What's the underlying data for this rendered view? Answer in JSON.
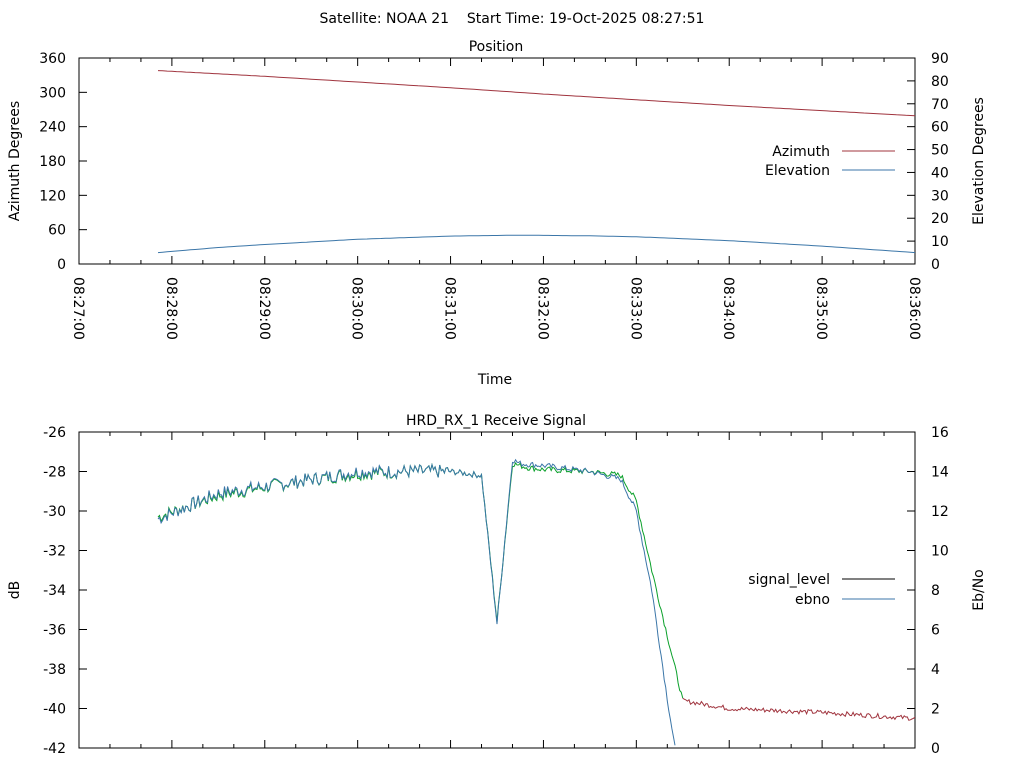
{
  "header": {
    "text": "Satellite: NOAA 21    Start Time: 19-Oct-2025 08:27:51"
  },
  "chart_data": [
    {
      "type": "line",
      "title": "Position",
      "xlabel": "Time",
      "ylabel": "Azimuth Degrees",
      "y2label": "Elevation Degrees",
      "xlim": [
        "08:27:00",
        "08:36:00"
      ],
      "ylim": [
        0,
        360
      ],
      "y2lim": [
        0,
        90
      ],
      "x_ticks": [
        "08:27:00",
        "08:28:00",
        "08:29:00",
        "08:30:00",
        "08:31:00",
        "08:32:00",
        "08:33:00",
        "08:34:00",
        "08:35:00",
        "08:36:00"
      ],
      "y_ticks": [
        "0",
        "60",
        "120",
        "180",
        "240",
        "300",
        "360"
      ],
      "y2_ticks": [
        "0",
        "10",
        "20",
        "30",
        "40",
        "50",
        "60",
        "70",
        "80",
        "90"
      ],
      "legend_position": "right",
      "series": [
        {
          "name": "Azimuth",
          "axis": "y",
          "color": "#a0343e",
          "x": [
            "08:27:51",
            "08:29:00",
            "08:30:00",
            "08:31:00",
            "08:32:00",
            "08:33:00",
            "08:34:00",
            "08:35:00",
            "08:36:00"
          ],
          "values": [
            338,
            328,
            318,
            308,
            297,
            287,
            277,
            268,
            259
          ]
        },
        {
          "name": "Elevation",
          "axis": "y2",
          "color": "#3b76a8",
          "x": [
            "08:27:51",
            "08:28:30",
            "08:29:00",
            "08:30:00",
            "08:31:00",
            "08:31:45",
            "08:32:30",
            "08:33:00",
            "08:34:00",
            "08:35:00",
            "08:36:00"
          ],
          "values": [
            5,
            7.2,
            8.5,
            10.8,
            12.2,
            12.6,
            12.3,
            11.9,
            10.2,
            7.8,
            5
          ]
        }
      ]
    },
    {
      "type": "line",
      "title": "HRD_RX_1 Receive Signal",
      "xlabel": "",
      "ylabel": "dB",
      "y2label": "Eb/No",
      "xlim": [
        "08:27:00",
        "08:36:00"
      ],
      "ylim": [
        -42,
        -26
      ],
      "y2lim": [
        0,
        16
      ],
      "y_ticks": [
        "-42",
        "-40",
        "-38",
        "-36",
        "-34",
        "-32",
        "-30",
        "-28",
        "-26"
      ],
      "y2_ticks": [
        "0",
        "2",
        "4",
        "6",
        "8",
        "10",
        "12",
        "14",
        "16"
      ],
      "legend_position": "right",
      "series": [
        {
          "name": "signal_level",
          "axis": "y",
          "color": "#000000",
          "x": [
            "08:27:51",
            "08:28:30",
            "08:29:30",
            "08:30:00",
            "08:30:30",
            "08:31:00",
            "08:31:20",
            "08:31:30",
            "08:31:40",
            "08:31:45",
            "08:31:50",
            "08:32:00",
            "08:32:30",
            "08:32:50",
            "08:33:00",
            "08:33:10",
            "08:33:30",
            "08:34:00",
            "08:35:00",
            "08:36:00"
          ],
          "values": [
            -30.3,
            -29.2,
            -28.4,
            -28.1,
            -28.0,
            -28.0,
            -28.2,
            -35.6,
            -27.6,
            -27.7,
            -27.8,
            -27.9,
            -28.0,
            -28.2,
            -29.5,
            -33.0,
            -39.6,
            -40.0,
            -40.2,
            -40.5
          ],
          "segment_colors": [
            "#0aa02a",
            "#a0343e"
          ]
        },
        {
          "name": "ebno",
          "axis": "y2",
          "color": "#3b76a8",
          "x": [
            "08:27:51",
            "08:28:30",
            "08:29:30",
            "08:30:00",
            "08:30:30",
            "08:31:00",
            "08:31:20",
            "08:31:30",
            "08:31:40",
            "08:31:45",
            "08:32:00",
            "08:32:30",
            "08:32:50",
            "08:33:00",
            "08:33:10",
            "08:33:20",
            "08:33:25"
          ],
          "values": [
            11.6,
            12.9,
            13.6,
            14.0,
            14.0,
            14.0,
            13.8,
            6.3,
            14.6,
            14.4,
            14.3,
            14.0,
            13.6,
            12.0,
            8.0,
            2.5,
            0
          ]
        }
      ]
    }
  ]
}
